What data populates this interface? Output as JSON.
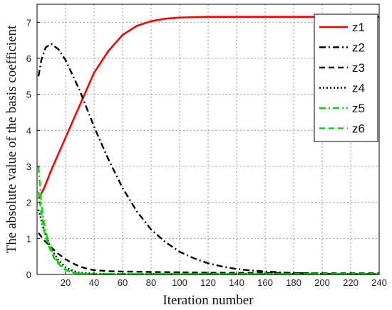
{
  "chart_data": {
    "type": "line",
    "title": "",
    "xlabel": "Iteration number",
    "ylabel": "The absolute value of the basis coefficient",
    "xlim": [
      0,
      240
    ],
    "ylim": [
      0,
      7.5
    ],
    "xticks": [
      20,
      40,
      60,
      80,
      100,
      120,
      140,
      160,
      180,
      200,
      220,
      240
    ],
    "yticks": [
      0,
      1,
      2,
      3,
      4,
      5,
      6,
      7
    ],
    "grid": true,
    "legend_position": "top-right",
    "series": [
      {
        "name": "z1",
        "color": "#ff0000",
        "dash": "solid",
        "x": [
          1,
          5,
          10,
          20,
          30,
          40,
          50,
          60,
          70,
          80,
          90,
          100,
          110,
          120,
          140,
          160,
          180,
          200,
          220,
          240
        ],
        "y": [
          2.1,
          2.4,
          2.9,
          3.8,
          4.7,
          5.6,
          6.2,
          6.65,
          6.9,
          7.03,
          7.1,
          7.13,
          7.14,
          7.15,
          7.15,
          7.15,
          7.15,
          7.15,
          7.15,
          7.15
        ]
      },
      {
        "name": "z2",
        "color": "#000000",
        "dash": "dashdot",
        "x": [
          1,
          3,
          6,
          10,
          15,
          20,
          30,
          40,
          50,
          60,
          70,
          80,
          90,
          100,
          110,
          120,
          130,
          140,
          150,
          160,
          180,
          200,
          220,
          240
        ],
        "y": [
          5.5,
          5.95,
          6.3,
          6.4,
          6.25,
          5.95,
          5.1,
          4.1,
          3.2,
          2.4,
          1.75,
          1.25,
          0.9,
          0.63,
          0.45,
          0.31,
          0.22,
          0.15,
          0.11,
          0.08,
          0.04,
          0.02,
          0.01,
          0.01
        ]
      },
      {
        "name": "z3",
        "color": "#000000",
        "dash": "dashed",
        "x": [
          1,
          5,
          10,
          15,
          20,
          25,
          30,
          35,
          40,
          50,
          60,
          80,
          100,
          120,
          160,
          200,
          240
        ],
        "y": [
          1.15,
          0.95,
          0.75,
          0.57,
          0.42,
          0.31,
          0.22,
          0.16,
          0.12,
          0.09,
          0.08,
          0.07,
          0.06,
          0.05,
          0.04,
          0.03,
          0.03
        ]
      },
      {
        "name": "z4",
        "color": "#000000",
        "dash": "dotted",
        "x": [
          1,
          5,
          10,
          15,
          20,
          25,
          30,
          40,
          60,
          100,
          160,
          240
        ],
        "y": [
          1.8,
          1.2,
          0.7,
          0.4,
          0.2,
          0.1,
          0.05,
          0.02,
          0.01,
          0.01,
          0.01,
          0.01
        ]
      },
      {
        "name": "z5",
        "color": "#00dd00",
        "dash": "dashdot",
        "x": [
          1,
          3,
          5,
          8,
          12,
          16,
          20,
          25,
          30,
          40,
          60,
          100,
          160,
          240
        ],
        "y": [
          3.0,
          2.0,
          1.4,
          0.9,
          0.5,
          0.28,
          0.14,
          0.06,
          0.03,
          0.01,
          0.01,
          0.01,
          0.01,
          0.01
        ]
      },
      {
        "name": "z6",
        "color": "#00dd00",
        "dash": "dashed",
        "x": [
          1,
          3,
          5,
          8,
          12,
          16,
          20,
          25,
          30,
          40,
          60,
          100,
          160,
          240
        ],
        "y": [
          2.3,
          1.7,
          1.2,
          0.8,
          0.45,
          0.25,
          0.12,
          0.05,
          0.02,
          0.01,
          0.01,
          0.01,
          0.01,
          0.01
        ]
      }
    ]
  }
}
